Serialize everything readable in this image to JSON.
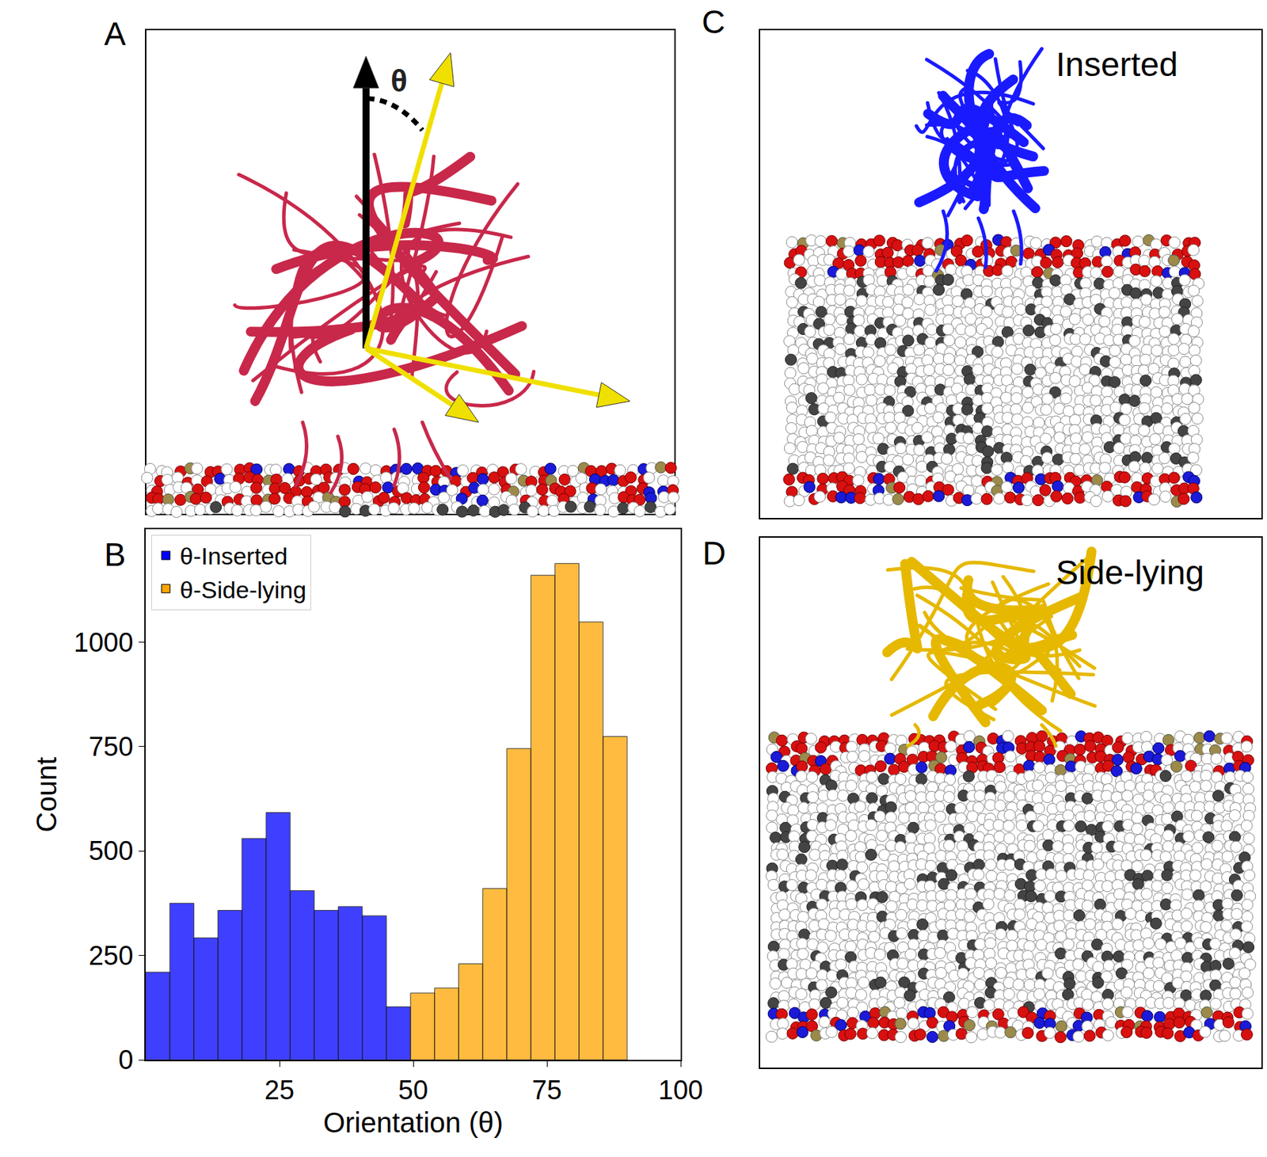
{
  "panel_labels": [
    "A",
    "B",
    "C",
    "D"
  ],
  "panel_a": {
    "angle_label": "θ"
  },
  "panel_c": {
    "title": "Inserted"
  },
  "panel_d": {
    "title": "Side-lying"
  },
  "chart_data": {
    "type": "histogram",
    "x_label": "Orientation (θ)",
    "y_label": "Count",
    "xlim": [
      0,
      100
    ],
    "xticks": [
      25,
      50,
      75,
      100
    ],
    "ylim": [
      0,
      1270
    ],
    "yticks": [
      0,
      250,
      500,
      750,
      1000
    ],
    "grid": false,
    "legend": "upper left",
    "series": [
      {
        "name": "θ-Inserted",
        "color": "#0000ff",
        "bins": [
          0,
          4.5,
          9,
          13.5,
          18,
          22.5,
          27,
          31.5,
          36,
          40.5,
          45,
          49.5
        ],
        "values": [
          210,
          375,
          292,
          358,
          530,
          592,
          405,
          358,
          367,
          345,
          127
        ]
      },
      {
        "name": "θ-Side-lying",
        "color": "#ffa500",
        "bins": [
          49.5,
          54,
          58.5,
          63,
          67.5,
          72,
          76.5,
          81,
          85.5,
          90
        ],
        "values": [
          160,
          172,
          230,
          410,
          745,
          1160,
          1188,
          1048,
          774
        ]
      }
    ]
  }
}
